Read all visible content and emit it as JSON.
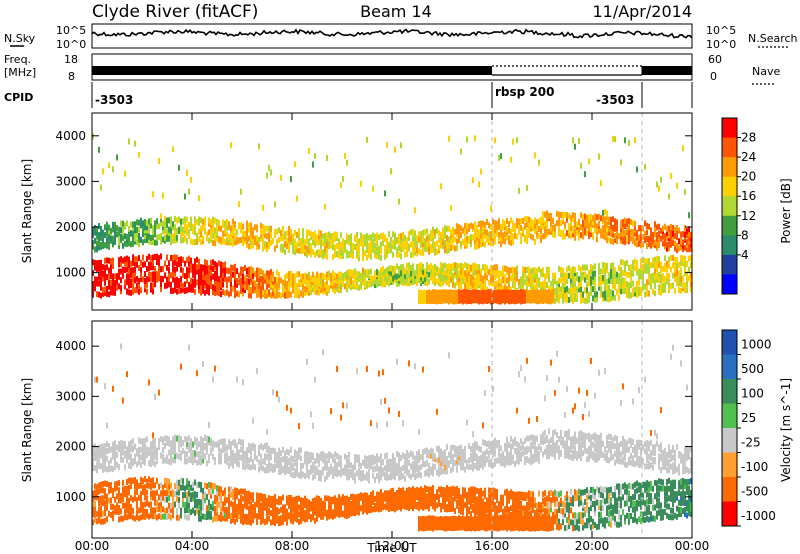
{
  "header": {
    "station": "Clyde River (fitACF)",
    "beam": "Beam 14",
    "date": "11/Apr/2014"
  },
  "top_panels": {
    "nsky_label": "N.Sky",
    "nsearch_label": "N.Search",
    "freq_label": "Freq.",
    "freq_unit": "[MHz]",
    "nave_label": "Nave",
    "cpid_label": "CPID",
    "noise_ticks_left": [
      "10^5",
      "10^0"
    ],
    "noise_ticks_right": [
      "10^5",
      "10^0"
    ],
    "freq_ticks_left": [
      "18",
      "8"
    ],
    "freq_ticks_right": [
      "60",
      "0"
    ],
    "cpid_segments": [
      {
        "label": "-3503",
        "start_hour": 0,
        "end_hour": 16
      },
      {
        "label": "rbsp 200",
        "start_hour": 16,
        "end_hour": 22
      },
      {
        "label": "-3503",
        "start_hour": 22,
        "end_hour": 24
      }
    ]
  },
  "chart_data": [
    {
      "type": "heatmap",
      "title": "Power",
      "ylabel": "Slant Range [km]",
      "xlabel": "Time UT",
      "x_ticks": [
        "00:00",
        "04:00",
        "08:00",
        "12:00",
        "16:00",
        "20:00",
        "00:00"
      ],
      "xlim_hours": [
        0,
        24
      ],
      "ylim": [
        180,
        4500
      ],
      "y_ticks": [
        1000,
        2000,
        3000,
        4000
      ],
      "colorbar_label": "Power [dB]",
      "colorbar_ticks": [
        "28",
        "24",
        "20",
        "16",
        "12",
        "8",
        "4"
      ],
      "colors": [
        "#ff0000",
        "#ff5500",
        "#ff9a00",
        "#ffd000",
        "#b0d830",
        "#40a040",
        "#2a8c6a",
        "#2040a0",
        "#0000ff"
      ],
      "data": {
        "x_hours": [
          0,
          2,
          4,
          6,
          8,
          10,
          12,
          14,
          16,
          18,
          20,
          22,
          24
        ],
        "y_km": [
          1000,
          2000
        ],
        "values_db": [
          [
            30,
            26,
            28,
            24,
            18,
            16,
            12,
            14,
            18,
            14,
            12,
            14,
            16
          ],
          [
            6,
            8,
            14,
            18,
            16,
            14,
            14,
            16,
            18,
            18,
            20,
            22,
            24
          ]
        ]
      }
    },
    {
      "type": "heatmap",
      "title": "Velocity",
      "ylabel": "Slant Range [km]",
      "xlabel": "Time UT",
      "x_ticks": [
        "00:00",
        "04:00",
        "08:00",
        "12:00",
        "16:00",
        "20:00",
        "00:00"
      ],
      "xlim_hours": [
        0,
        24
      ],
      "ylim": [
        180,
        4500
      ],
      "y_ticks": [
        1000,
        2000,
        3000,
        4000
      ],
      "colorbar_label": "Velocity [m s^-1]",
      "colorbar_ticks": [
        "1000",
        "500",
        "100",
        "25",
        "-25",
        "-100",
        "-500",
        "-1000"
      ],
      "colors": [
        "#2050b0",
        "#2a70c0",
        "#3a8c5a",
        "#50c050",
        "#c8c8c8",
        "#ffa030",
        "#ff6a00",
        "#ff0000"
      ],
      "data": {
        "x_hours": [
          0,
          2,
          4,
          6,
          8,
          10,
          12,
          14,
          16,
          18,
          20,
          22,
          24
        ],
        "y_km": [
          1000,
          2000
        ],
        "values_ms": [
          [
            -200,
            -300,
            150,
            -250,
            -300,
            -300,
            -250,
            -300,
            -350,
            -150,
            100,
            150,
            200
          ],
          [
            0,
            0,
            10,
            0,
            0,
            0,
            0,
            -10,
            0,
            0,
            0,
            0,
            0
          ]
        ]
      }
    }
  ]
}
